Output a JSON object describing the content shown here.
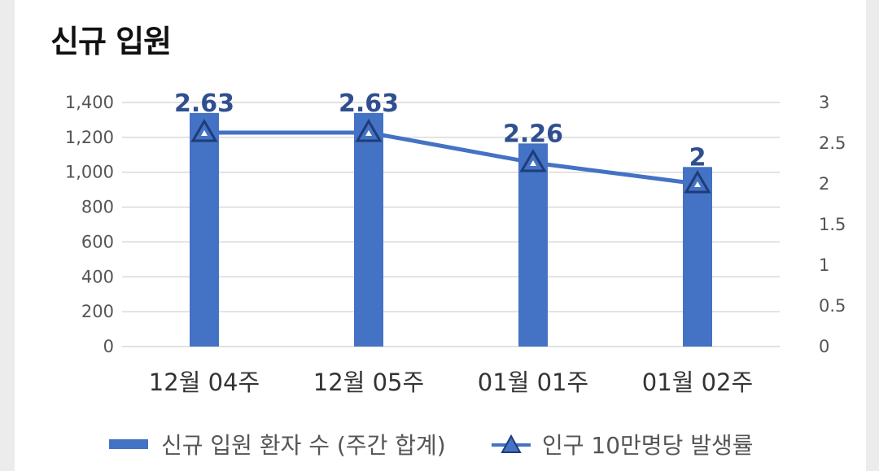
{
  "title": "신규 입원",
  "colors": {
    "bar": "#4472c4",
    "line": "#4472c4",
    "marker_fill": "#4472c4",
    "marker_stroke": "#1f3c78",
    "label": "#2f4f8f",
    "grid": "#d9d9d9"
  },
  "chart_data": {
    "type": "bar",
    "categories": [
      "12월 04주",
      "12월 05주",
      "01월 01주",
      "01월 02주"
    ],
    "series": [
      {
        "name": "신규 입원 환자 수 (주간 합계)",
        "type": "bar",
        "axis": "left",
        "values": [
          1340,
          1340,
          1165,
          1030
        ]
      },
      {
        "name": "인구 10만명당 발생률",
        "type": "line",
        "axis": "right",
        "marker": "triangle",
        "values": [
          2.63,
          2.63,
          2.26,
          2.0
        ],
        "labels": [
          "2.63",
          "2.63",
          "2.26",
          "2"
        ]
      }
    ],
    "ylim_left": [
      0,
      1400
    ],
    "yticks_left": [
      "0",
      "200",
      "400",
      "600",
      "800",
      "1,000",
      "1,200",
      "1,400"
    ],
    "ylim_right": [
      0,
      3
    ],
    "yticks_right": [
      "0",
      "0.5",
      "1",
      "1.5",
      "2",
      "2.5",
      "3"
    ],
    "grid": true,
    "legend": "bottom"
  }
}
